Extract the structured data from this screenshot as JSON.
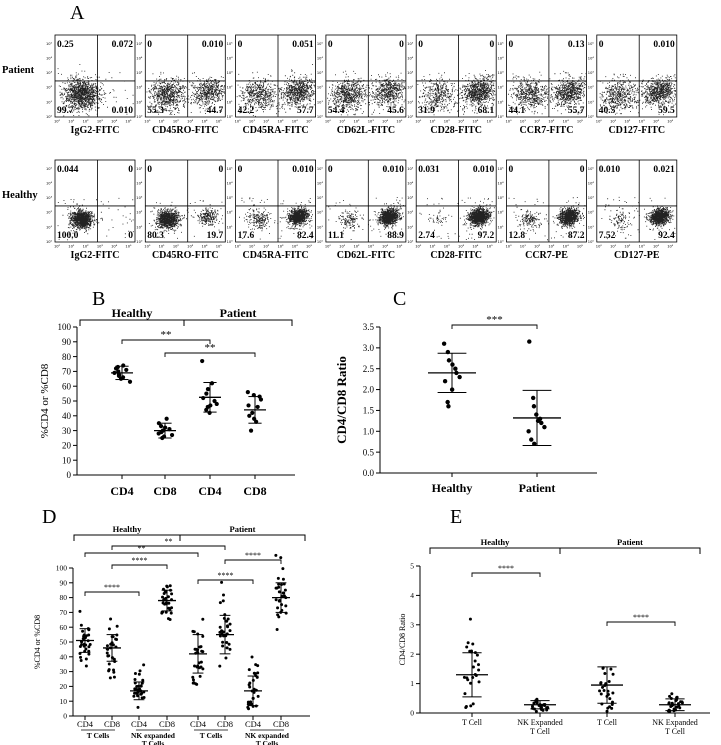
{
  "panel_letters": [
    "A",
    "B",
    "C",
    "D",
    "E"
  ],
  "flow": {
    "rows": [
      {
        "label": "Patient",
        "plots": [
          {
            "x": "IgG2-FITC",
            "q": [
              "0.25",
              "0.072",
              "99.7",
              "0.010"
            ]
          },
          {
            "x": "CD45RO-FITC",
            "q": [
              "0",
              "0.010",
              "55.3",
              "44.7"
            ]
          },
          {
            "x": "CD45RA-FITC",
            "q": [
              "0",
              "0.051",
              "42.2",
              "57.7"
            ]
          },
          {
            "x": "CD62L-FITC",
            "q": [
              "0",
              "0",
              "54.4",
              "45.6"
            ]
          },
          {
            "x": "CD28-FITC",
            "q": [
              "0",
              "0",
              "31.9",
              "68.1"
            ]
          },
          {
            "x": "CCR7-FITC",
            "q": [
              "0",
              "0.13",
              "44.1",
              "55.7"
            ]
          },
          {
            "x": "CD127-FITC",
            "q": [
              "0",
              "0.010",
              "40.5",
              "59.5"
            ]
          }
        ]
      },
      {
        "label": "Healthy",
        "plots": [
          {
            "x": "IgG2-FITC",
            "q": [
              "0.044",
              "0",
              "100.0",
              "0"
            ]
          },
          {
            "x": "CD45RO-FITC",
            "q": [
              "0",
              "0",
              "80.3",
              "19.7"
            ]
          },
          {
            "x": "CD45RA-FITC",
            "q": [
              "0",
              "0.010",
              "17.6",
              "82.4"
            ]
          },
          {
            "x": "CD62L-FITC",
            "q": [
              "0",
              "0.010",
              "11.1",
              "88.9"
            ]
          },
          {
            "x": "CD28-FITC",
            "q": [
              "0.031",
              "0.010",
              "2.74",
              "97.2"
            ]
          },
          {
            "x": "CCR7-PE",
            "q": [
              "0",
              "0",
              "12.8",
              "87.2"
            ]
          },
          {
            "x": "CD127-PE",
            "q": [
              "0.010",
              "0.021",
              "7.52",
              "92.4"
            ]
          }
        ]
      }
    ],
    "tick_labels": [
      "10⁰",
      "10¹",
      "10²",
      "10³",
      "10⁴",
      "10⁵"
    ]
  },
  "chart_data": [
    {
      "type": "scatter",
      "panel": "B",
      "categories": [
        "CD4",
        "CD8",
        "CD4",
        "CD8"
      ],
      "groups": [
        {
          "name": "Healthy",
          "span": [
            0,
            1
          ]
        },
        {
          "name": "Patient",
          "span": [
            2,
            3
          ]
        }
      ],
      "ylabel": "%CD4 or %CD8",
      "ylim": [
        0,
        100
      ],
      "yticks": [
        0,
        10,
        20,
        30,
        40,
        50,
        60,
        70,
        80,
        90,
        100
      ],
      "means": [
        69,
        30,
        52.5,
        44
      ],
      "sd": [
        4.5,
        5,
        10,
        9
      ],
      "points": [
        [
          72,
          70,
          68,
          66,
          74,
          71,
          63,
          69,
          73,
          67,
          65
        ],
        [
          28,
          33,
          30,
          26,
          38,
          31,
          27,
          35,
          29,
          25,
          32
        ],
        [
          77,
          55,
          46,
          42,
          62,
          50,
          48,
          52,
          44,
          58,
          47
        ],
        [
          56,
          30,
          42,
          38,
          46,
          53,
          51,
          47,
          40,
          54,
          36
        ]
      ],
      "sig": [
        {
          "label": "**",
          "from": 0,
          "to": 2
        },
        {
          "label": "**",
          "from": 1,
          "to": 3
        }
      ]
    },
    {
      "type": "scatter",
      "panel": "C",
      "categories": [
        "Healthy",
        "Patient"
      ],
      "ylabel": "CD4/CD8 Ratio",
      "ylim": [
        0,
        3.5
      ],
      "yticks": [
        "0.0",
        "0.5",
        "1.0",
        "1.5",
        "2.0",
        "2.5",
        "3.0",
        "3.5"
      ],
      "means": [
        2.4,
        1.32
      ],
      "sd": [
        0.47,
        0.66
      ],
      "points": [
        [
          3.1,
          2.9,
          2.7,
          2.6,
          2.5,
          2.4,
          2.3,
          2.2,
          1.7,
          1.6,
          2.0
        ],
        [
          3.15,
          1.8,
          1.6,
          1.4,
          1.3,
          1.2,
          1.1,
          1.0,
          0.8,
          0.7,
          1.25
        ]
      ],
      "sig": [
        {
          "label": "***",
          "from": 0,
          "to": 1
        }
      ]
    },
    {
      "type": "scatter",
      "panel": "D",
      "categories": [
        "CD4",
        "CD8",
        "CD4",
        "CD8",
        "CD4",
        "CD8",
        "CD4",
        "CD8"
      ],
      "subgroups": [
        "T Cells",
        "NK expanded T Cells",
        "T Cells",
        "NK expanded T Cells"
      ],
      "groups": [
        {
          "name": "Healthy",
          "span": [
            0,
            3
          ]
        },
        {
          "name": "Patient",
          "span": [
            4,
            7
          ]
        }
      ],
      "ylabel": "%CD4 or %CD8",
      "ylim": [
        0,
        100
      ],
      "yticks": [
        0,
        10,
        20,
        30,
        40,
        50,
        60,
        70,
        80,
        90,
        100
      ],
      "means": [
        51,
        46,
        17,
        78,
        42,
        55,
        17,
        80
      ],
      "sd": [
        8,
        9,
        6,
        7,
        13,
        13,
        10,
        10
      ],
      "sig": [
        {
          "label": "****",
          "from": 0,
          "to": 2
        },
        {
          "label": "****",
          "from": 1,
          "to": 3
        },
        {
          "label": "**",
          "from": 0,
          "to": 4
        },
        {
          "label": "**",
          "from": 1,
          "to": 5
        },
        {
          "label": "****",
          "from": 4,
          "to": 6
        },
        {
          "label": "****",
          "from": 5,
          "to": 7
        }
      ]
    },
    {
      "type": "scatter",
      "panel": "E",
      "categories": [
        "T Cell",
        "NK Expanded T Cell",
        "T Cell",
        "NK Expanded T Cell"
      ],
      "groups": [
        {
          "name": "Healthy",
          "span": [
            0,
            1
          ]
        },
        {
          "name": "Patient",
          "span": [
            2,
            3
          ]
        }
      ],
      "ylabel": "CD4/CD8 Ratio",
      "ylim": [
        0,
        5
      ],
      "yticks": [
        0,
        1,
        2,
        3,
        4,
        5
      ],
      "means": [
        1.3,
        0.28,
        0.95,
        0.28
      ],
      "sd": [
        0.75,
        0.14,
        0.62,
        0.2
      ],
      "sig": [
        {
          "label": "****",
          "from": 0,
          "to": 1
        },
        {
          "label": "****",
          "from": 2,
          "to": 3
        }
      ]
    }
  ]
}
